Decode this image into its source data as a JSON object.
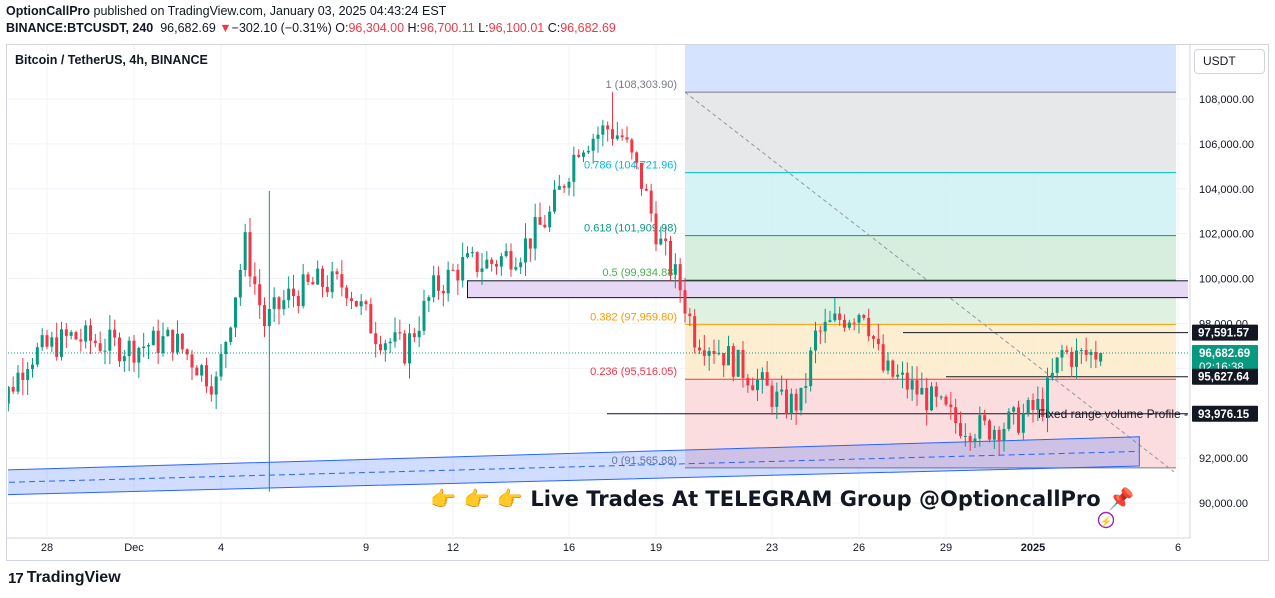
{
  "header": {
    "publisher": "OptionCallPro",
    "published_text": " published on TradingView.com, January 03, 2025 04:43:24 EST",
    "symbol": "BINANCE:BTCUSDT, 240",
    "price": "96,682.69",
    "change_arrow": "▼",
    "change": "−302.10 (−0.31%)",
    "o_label": "O:",
    "o_value": "96,304.00",
    "h_label": "H:",
    "h_value": "96,700.11",
    "l_label": "L:",
    "l_value": "96,100.01",
    "c_label": "C:",
    "c_value": "96,682.69"
  },
  "legend_title": "Bitcoin / TetherUS, 4h, BINANCE",
  "currency_button": "USDT",
  "footer": {
    "logo_glyph": "17",
    "brand": "TradingView"
  },
  "banner": {
    "text": "👉 👉 👉 Live Trades At TELEGRAM Group @OptioncallPro 📌"
  },
  "volume_profile_label": "Fixed range volume Profile -",
  "colors": {
    "up": "#089981",
    "down": "#f23645",
    "fib_1": "#787b86",
    "fib_786": "#00bcd4",
    "fib_618": "#089981",
    "fib_5": "#4caf50",
    "fib_382": "#ff9800",
    "fib_236": "#f23645",
    "fib_0": "#787b86",
    "channel": "#2962ff"
  },
  "chart_data": {
    "type": "candlestick",
    "title": "Bitcoin / TetherUS, 4h, BINANCE",
    "ylim": [
      89600,
      110200
    ],
    "y_ticks": [
      {
        "value": 90000,
        "label": "90,000.00"
      },
      {
        "value": 92000,
        "label": "92,000.00"
      },
      {
        "value": 94000,
        "label": "94,000.00"
      },
      {
        "value": 96000,
        "label": "96,000.00"
      },
      {
        "value": 98000,
        "label": "98,000.00"
      },
      {
        "value": 100000,
        "label": "100,000.00"
      },
      {
        "value": 102000,
        "label": "102,000.00"
      },
      {
        "value": 104000,
        "label": "104,000.00"
      },
      {
        "value": 106000,
        "label": "106,000.00"
      },
      {
        "value": 108000,
        "label": "108,000.00"
      }
    ],
    "x_ticks": [
      {
        "date": "2024-11-28",
        "label": "28"
      },
      {
        "date": "2024-12-01",
        "label": "Dec"
      },
      {
        "date": "2024-12-04",
        "label": "4"
      },
      {
        "date": "2024-12-09",
        "label": "9"
      },
      {
        "date": "2024-12-12",
        "label": "12"
      },
      {
        "date": "2024-12-16",
        "label": "16"
      },
      {
        "date": "2024-12-19",
        "label": "19"
      },
      {
        "date": "2024-12-23",
        "label": "23"
      },
      {
        "date": "2024-12-26",
        "label": "26"
      },
      {
        "date": "2024-12-29",
        "label": "29"
      },
      {
        "date": "2025-01-01",
        "label": "2025"
      },
      {
        "date": "2025-01-06",
        "label": "6"
      }
    ],
    "fib_levels": [
      {
        "ratio": "1",
        "value": 108303.9,
        "label": "1 (108,303.90)"
      },
      {
        "ratio": "0.786",
        "value": 104721.96,
        "label": "0.786 (104,721.96)"
      },
      {
        "ratio": "0.618",
        "value": 101909.98,
        "label": "0.618 (101,909.98)"
      },
      {
        "ratio": "0.5",
        "value": 99934.88,
        "label": "0.5 (99,934.88)"
      },
      {
        "ratio": "0.382",
        "value": 97959.8,
        "label": "0.382 (97,959.80)"
      },
      {
        "ratio": "0.236",
        "value": 95516.05,
        "label": "0.236 (95,516.05)"
      },
      {
        "ratio": "0",
        "value": 91565.88,
        "label": "0 (91,565.88)"
      }
    ],
    "price_labels": [
      {
        "value": 97591.57,
        "label": "97,591.57",
        "kind": "level"
      },
      {
        "value": 96682.69,
        "label": "96,682.69",
        "countdown": "02:16:38",
        "kind": "last"
      },
      {
        "value": 95627.64,
        "label": "95,627.64",
        "kind": "level"
      },
      {
        "value": 93976.15,
        "label": "93,976.15",
        "kind": "level"
      }
    ],
    "zones": [
      {
        "from": "2024-12-12T12:00",
        "to": "2025-01-08T00:00",
        "low": 99150,
        "high": 99900,
        "kind": "purple-box"
      }
    ],
    "channel": {
      "start": {
        "date": "2024-11-26T00:00",
        "low": 90350,
        "high": 91450
      },
      "end": {
        "date": "2025-01-04T16:00",
        "low": 91650,
        "high": 92950
      }
    },
    "last_price": 96682.69,
    "ohlc_anchors": [
      {
        "date": "2024-11-26T00:00",
        "close": 93000
      },
      {
        "date": "2024-11-27T12:00",
        "close": 96500
      },
      {
        "date": "2024-11-29T00:00",
        "close": 97400
      },
      {
        "date": "2024-12-01T00:00",
        "close": 96900
      },
      {
        "date": "2024-12-02T12:00",
        "close": 97300
      },
      {
        "date": "2024-12-04T00:00",
        "close": 95300
      },
      {
        "date": "2024-12-05T00:00",
        "close": 101500
      },
      {
        "date": "2024-12-05T16:00",
        "close": 98000
      },
      {
        "date": "2024-12-06T12:00",
        "close": 99200
      },
      {
        "date": "2024-12-07T12:00",
        "close": 99800
      },
      {
        "date": "2024-12-08T12:00",
        "close": 99700
      },
      {
        "date": "2024-12-09T12:00",
        "close": 97600
      },
      {
        "date": "2024-12-10T12:00",
        "close": 96800
      },
      {
        "date": "2024-12-11T12:00",
        "close": 99500
      },
      {
        "date": "2024-12-12T12:00",
        "close": 100600
      },
      {
        "date": "2024-12-13T12:00",
        "close": 100700
      },
      {
        "date": "2024-12-14T12:00",
        "close": 101300
      },
      {
        "date": "2024-12-15T12:00",
        "close": 102800
      },
      {
        "date": "2024-12-16T12:00",
        "close": 106000
      },
      {
        "date": "2024-12-17T12:00",
        "close": 106700
      },
      {
        "date": "2024-12-18T00:00",
        "close": 106300
      },
      {
        "date": "2024-12-18T16:00",
        "close": 104300
      },
      {
        "date": "2024-12-19T08:00",
        "close": 101500
      },
      {
        "date": "2024-12-20T00:00",
        "close": 99600
      },
      {
        "date": "2024-12-20T12:00",
        "close": 97500
      },
      {
        "date": "2024-12-21T04:00",
        "close": 97000
      },
      {
        "date": "2024-12-22T12:00",
        "close": 95600
      },
      {
        "date": "2024-12-23T12:00",
        "close": 94400
      },
      {
        "date": "2024-12-24T04:00",
        "close": 94500
      },
      {
        "date": "2024-12-24T16:00",
        "close": 97400
      },
      {
        "date": "2024-12-25T12:00",
        "close": 98200
      },
      {
        "date": "2024-12-26T08:00",
        "close": 98700
      },
      {
        "date": "2024-12-27T00:00",
        "close": 95900
      },
      {
        "date": "2024-12-27T16:00",
        "close": 95400
      },
      {
        "date": "2024-12-28T12:00",
        "close": 94700
      },
      {
        "date": "2024-12-29T12:00",
        "close": 93600
      },
      {
        "date": "2024-12-30T12:00",
        "close": 93300
      },
      {
        "date": "2024-12-31T12:00",
        "close": 93600
      },
      {
        "date": "2025-01-01T12:00",
        "close": 94400
      },
      {
        "date": "2025-01-02T04:00",
        "close": 96700
      },
      {
        "date": "2025-01-02T16:00",
        "close": 96500
      },
      {
        "date": "2025-01-03T08:00",
        "close": 96682.69
      }
    ]
  }
}
